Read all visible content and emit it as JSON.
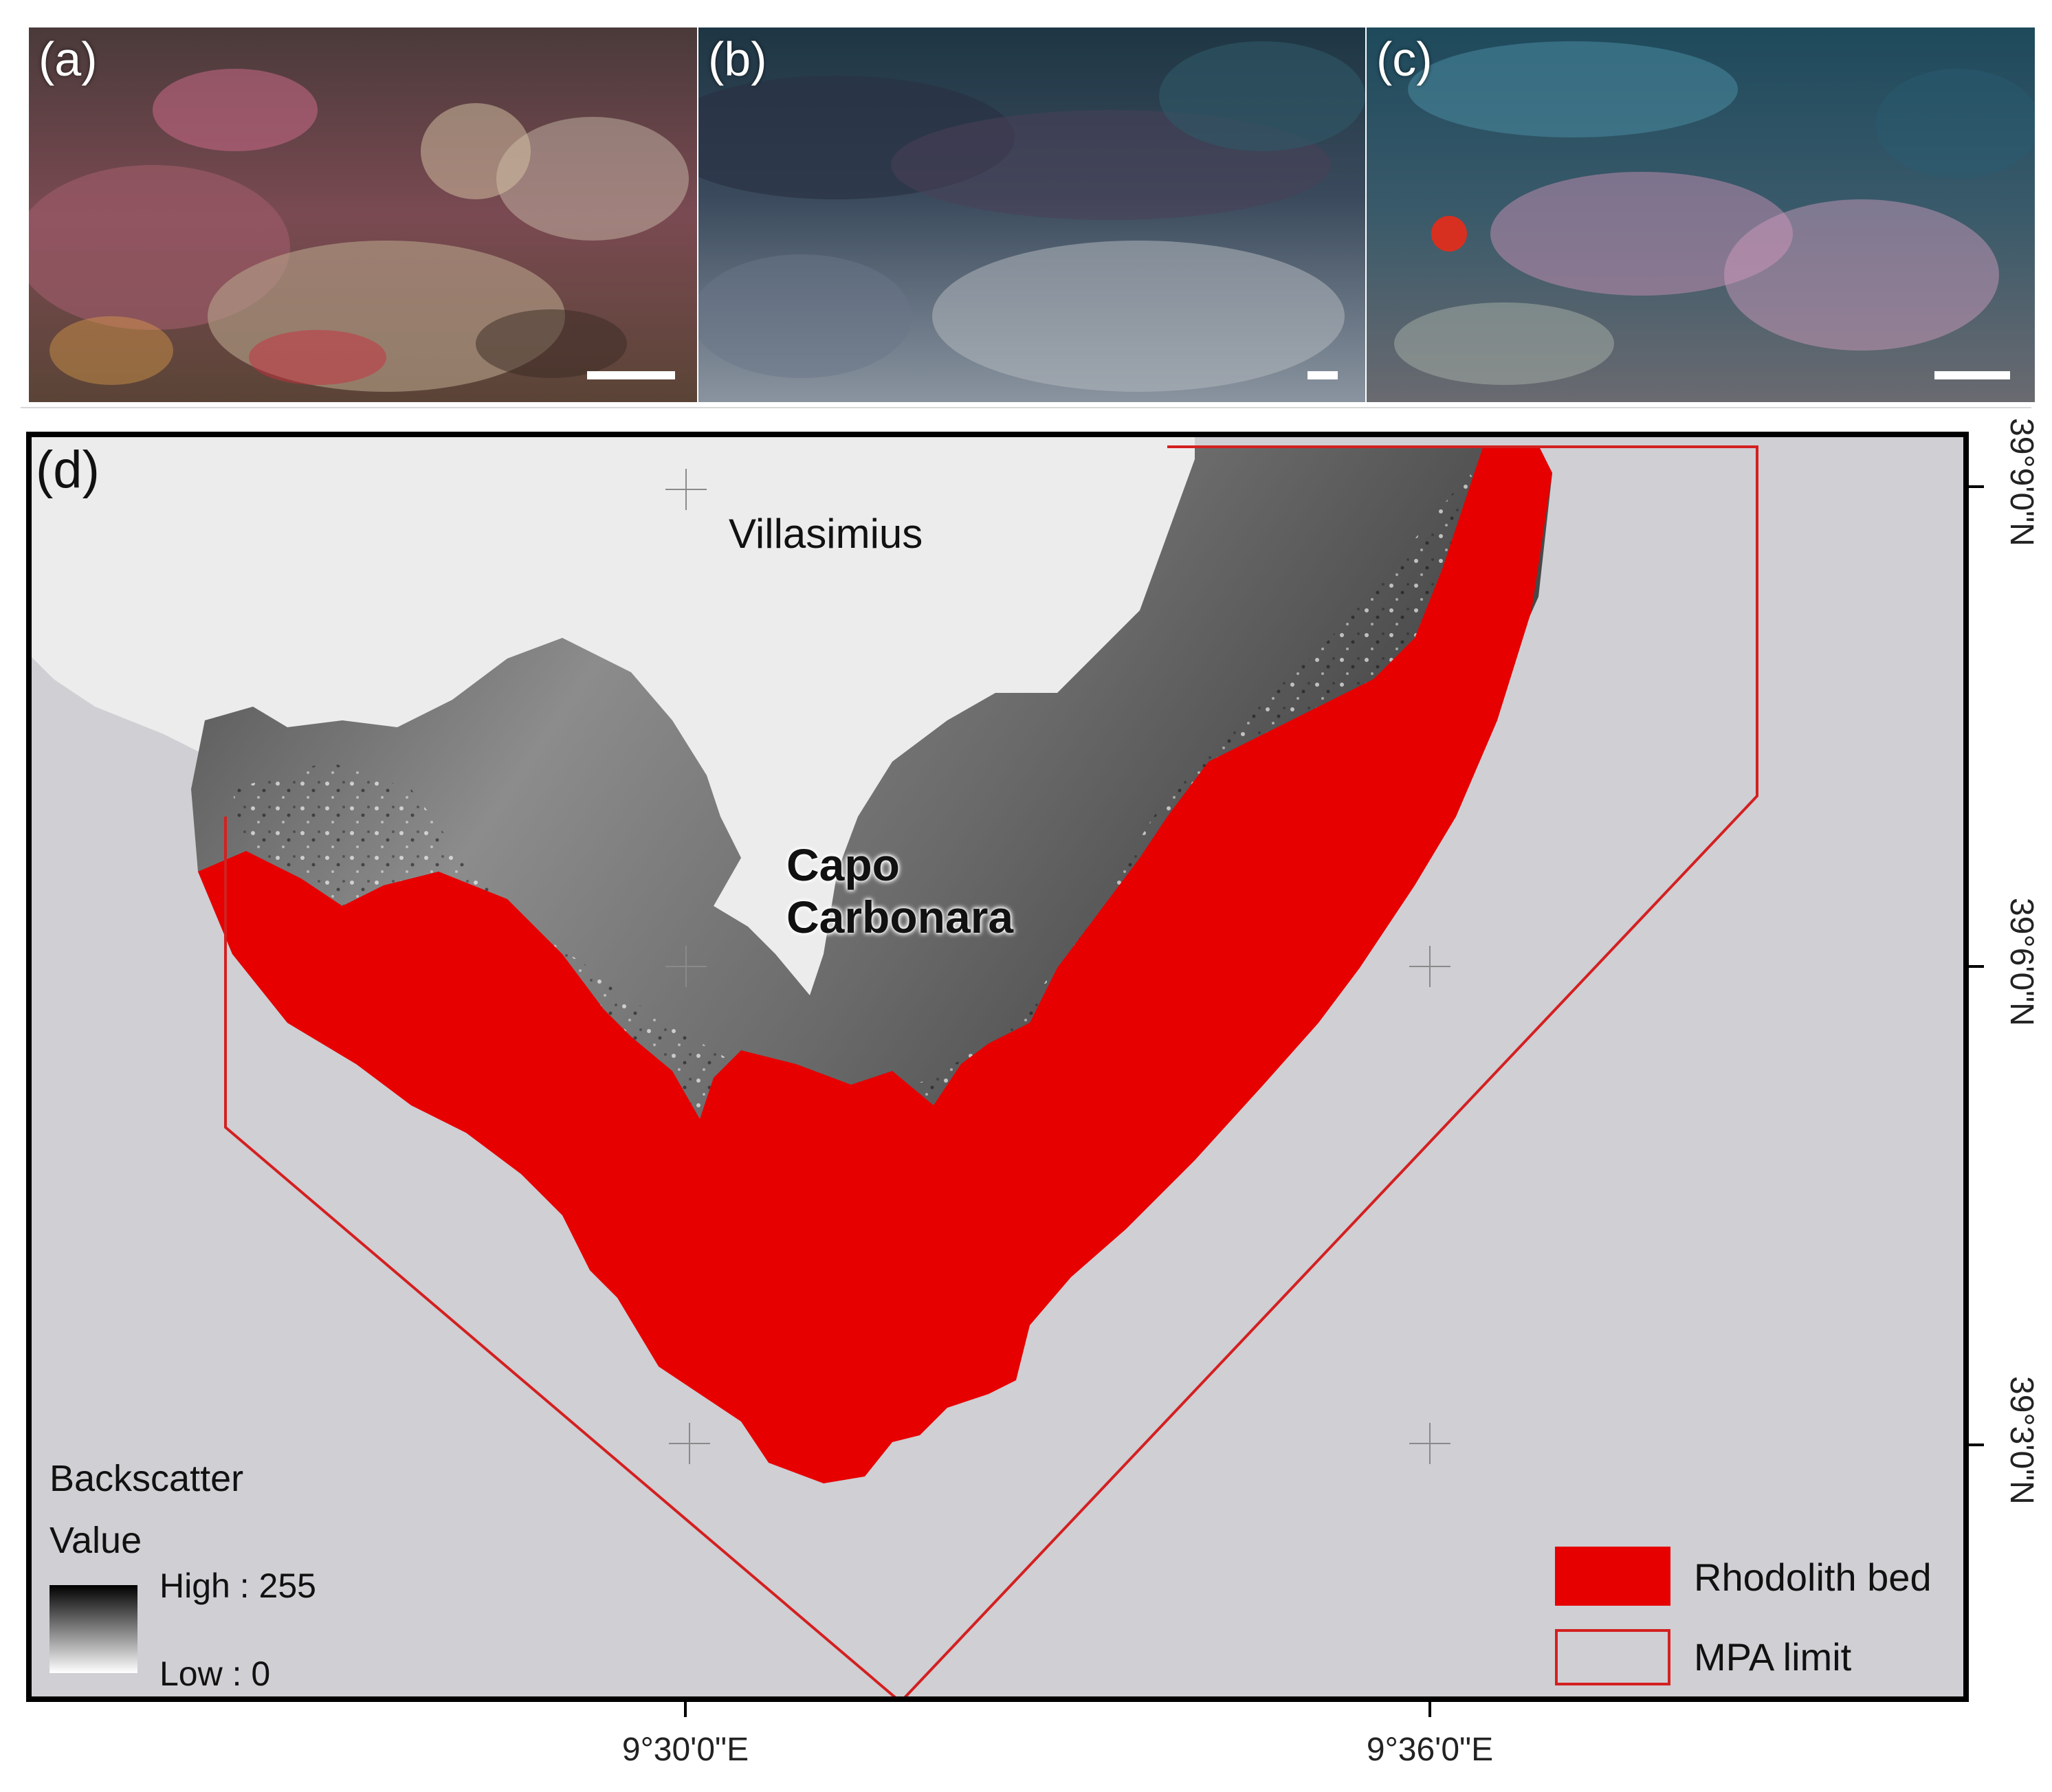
{
  "photos": [
    {
      "label": "(a)"
    },
    {
      "label": "(b)"
    },
    {
      "label": "(c)"
    }
  ],
  "map": {
    "panel_label": "(d)",
    "places": {
      "town": "Villasimius",
      "cape_line1": "Capo",
      "cape_line2": "Carbonara"
    },
    "longitude_labels": [
      "9°30'0\"E",
      "9°36'0\"E"
    ],
    "latitude_labels": [
      "39°9'0\"N",
      "39°6'0\"N",
      "39°3'0\"N"
    ],
    "backscatter_legend": {
      "title": "Backscatter",
      "value_label": "Value",
      "high": "High : 255",
      "low": "Low : 0"
    },
    "legend": {
      "rhodolith": "Rhodolith bed",
      "mpa": "MPA limit"
    },
    "colors": {
      "rhodolith": "#e60000",
      "mpa_outline": "#d42020",
      "sea": "#cfcfd4",
      "land": "#ececec"
    }
  }
}
